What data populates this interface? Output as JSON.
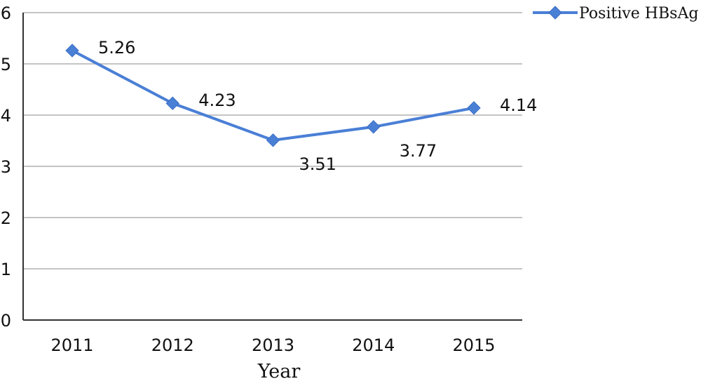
{
  "chart_data": {
    "type": "line",
    "categories": [
      "2011",
      "2012",
      "2013",
      "2014",
      "2015"
    ],
    "series": [
      {
        "name": "Positive HBsAg",
        "values": [
          5.26,
          4.23,
          3.51,
          3.77,
          4.14
        ]
      }
    ],
    "data_labels": [
      "5.26",
      "4.23",
      "3.51",
      "3.77",
      "4.14"
    ],
    "y_ticks": [
      "0",
      "1",
      "2",
      "3",
      "4",
      "5",
      "6"
    ],
    "title": "",
    "xlabel": "Year",
    "ylabel": "",
    "ylim": [
      0,
      6
    ],
    "grid": true,
    "legend_position": "top-right",
    "colors": {
      "series": "#4a7fd6",
      "grid": "#c4c4c4"
    }
  }
}
